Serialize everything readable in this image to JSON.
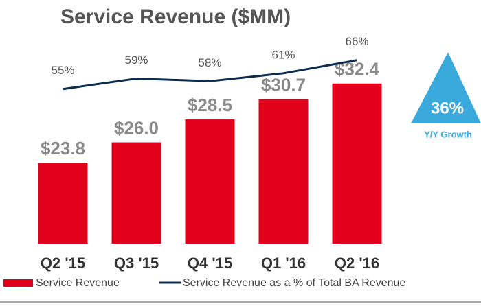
{
  "chart_data": {
    "type": "bar",
    "title": "Service Revenue ($MM)",
    "categories": [
      "Q2 '15",
      "Q3 '15",
      "Q4 '15",
      "Q1 '16",
      "Q2 '16"
    ],
    "series": [
      {
        "name": "Service Revenue",
        "type": "bar",
        "color": "#e3001b",
        "values": [
          23.8,
          26.0,
          28.5,
          30.7,
          32.4
        ],
        "value_labels": [
          "$23.8",
          "$26.0",
          "$28.5",
          "$30.7",
          "$32.4"
        ]
      },
      {
        "name": "Service Revenue as a % of Total BA Revenue",
        "type": "line",
        "axis": "y2",
        "color": "#0d2d4f",
        "values": [
          55,
          59,
          58,
          61,
          66
        ],
        "value_labels": [
          "55%",
          "59%",
          "58%",
          "61%",
          "66%"
        ]
      }
    ],
    "ylim": [
      15,
      38.5
    ],
    "y2lim": [
      -4,
      78.5
    ],
    "annotations": [
      "36%",
      "Y/Y Growth"
    ]
  }
}
